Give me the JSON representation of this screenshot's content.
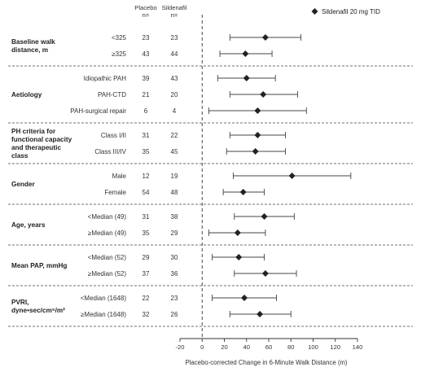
{
  "chart_data": {
    "type": "forest",
    "columns": {
      "placebo": "Placebo",
      "sildenafil": "Sildenafil",
      "n_label": "n="
    },
    "legend": "Sildenafil 20 mg TID",
    "xlabel": "Placebo-corrected Change in 6-Minute Walk Distance (m)",
    "xlim": [
      -20,
      140
    ],
    "xticks": [
      "-20",
      "0",
      "20",
      "40",
      "60",
      "80",
      "100",
      "120",
      "140"
    ],
    "reference_line": 0,
    "groups": [
      {
        "title_lines": [
          "Baseline walk",
          "distance, m"
        ],
        "rows": [
          {
            "label": "<325",
            "placebo_n": "23",
            "sildenafil_n": "23",
            "estimate": 57,
            "ci": [
              25,
              89
            ]
          },
          {
            "label": "≥325",
            "placebo_n": "43",
            "sildenafil_n": "44",
            "estimate": 39,
            "ci": [
              16,
              63
            ]
          }
        ]
      },
      {
        "title_lines": [
          "Aetiology"
        ],
        "rows": [
          {
            "label": "Idiopathic PAH",
            "placebo_n": "39",
            "sildenafil_n": "43",
            "estimate": 40,
            "ci": [
              14,
              66
            ]
          },
          {
            "label": "PAH-CTD",
            "placebo_n": "21",
            "sildenafil_n": "20",
            "estimate": 55,
            "ci": [
              25,
              86
            ]
          },
          {
            "label": "PAH-surgical repair",
            "placebo_n": "6",
            "sildenafil_n": "4",
            "estimate": 50,
            "ci": [
              6,
              94
            ]
          }
        ]
      },
      {
        "title_lines": [
          "PH criteria for",
          "functional capacity",
          "and therapeutic",
          "class"
        ],
        "rows": [
          {
            "label": "Class I/II",
            "placebo_n": "31",
            "sildenafil_n": "22",
            "estimate": 50,
            "ci": [
              25,
              75
            ]
          },
          {
            "label": "Class III/IV",
            "placebo_n": "35",
            "sildenafil_n": "45",
            "estimate": 48,
            "ci": [
              22,
              75
            ]
          }
        ]
      },
      {
        "title_lines": [
          "Gender"
        ],
        "rows": [
          {
            "label": "Male",
            "placebo_n": "12",
            "sildenafil_n": "19",
            "estimate": 81,
            "ci": [
              28,
              134
            ]
          },
          {
            "label": "Female",
            "placebo_n": "54",
            "sildenafil_n": "48",
            "estimate": 37,
            "ci": [
              19,
              56
            ]
          }
        ]
      },
      {
        "title_lines": [
          "Age, years"
        ],
        "rows": [
          {
            "label": "<Median (49)",
            "placebo_n": "31",
            "sildenafil_n": "38",
            "estimate": 56,
            "ci": [
              29,
              83
            ]
          },
          {
            "label": "≥Median (49)",
            "placebo_n": "35",
            "sildenafil_n": "29",
            "estimate": 32,
            "ci": [
              6,
              57
            ]
          }
        ]
      },
      {
        "title_lines": [
          "Mean PAP, mmHg"
        ],
        "rows": [
          {
            "label": "<Median (52)",
            "placebo_n": "29",
            "sildenafil_n": "30",
            "estimate": 33,
            "ci": [
              9,
              56
            ]
          },
          {
            "label": "≥Median (52)",
            "placebo_n": "37",
            "sildenafil_n": "36",
            "estimate": 57,
            "ci": [
              29,
              85
            ]
          }
        ]
      },
      {
        "title_lines": [
          "PVRI,",
          "dyne•sec/cm⁵/m²"
        ],
        "rows": [
          {
            "label": "<Median (1648)",
            "placebo_n": "22",
            "sildenafil_n": "23",
            "estimate": 38,
            "ci": [
              9,
              67
            ]
          },
          {
            "label": "≥Median (1648)",
            "placebo_n": "32",
            "sildenafil_n": "26",
            "estimate": 52,
            "ci": [
              25,
              80
            ]
          }
        ]
      }
    ]
  }
}
